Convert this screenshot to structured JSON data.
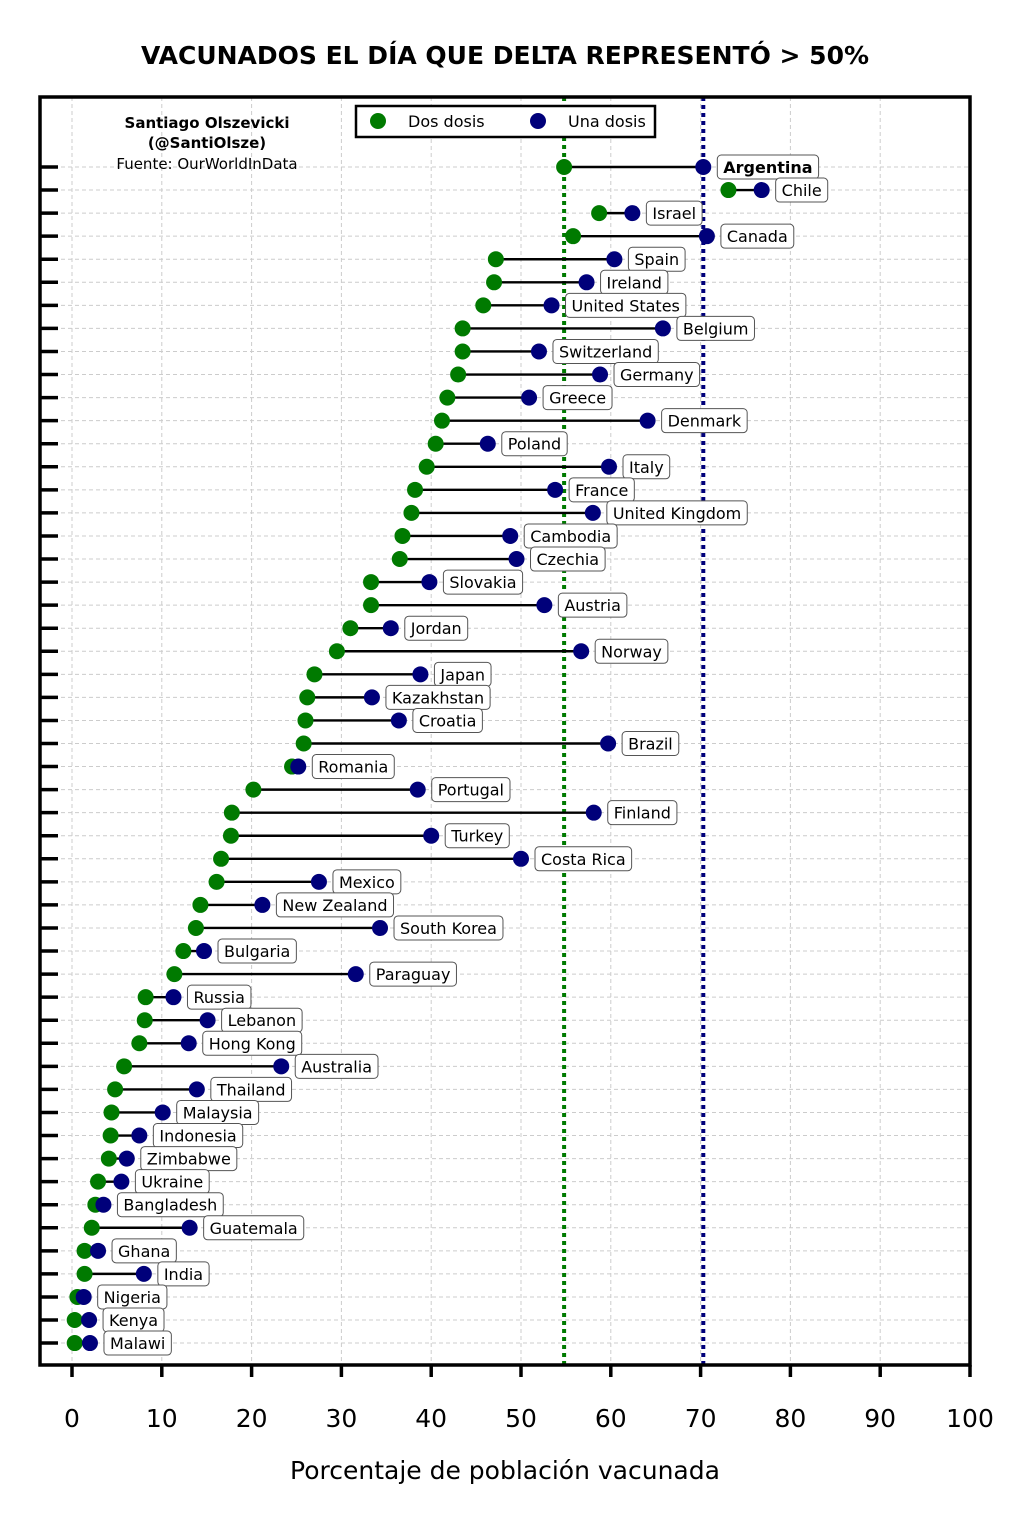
{
  "chart_data": {
    "type": "scatter",
    "title": "VACUNADOS EL DÍA QUE DELTA REPRESENTÓ > 50%",
    "xlabel": "Porcentaje de población vacunada",
    "ylabel": "",
    "xlim": [
      0,
      100
    ],
    "xticks": [
      0,
      10,
      20,
      30,
      40,
      50,
      60,
      70,
      80,
      90,
      100
    ],
    "grid": true,
    "legend_position": "top-center",
    "credits": [
      "Santiago Olszevicki",
      "(@SantiOlsze)",
      "Fuente: OurWorldInData"
    ],
    "series": [
      {
        "name": "Dos dosis",
        "color": "#007a00"
      },
      {
        "name": "Una dosis",
        "color": "#00007a"
      }
    ],
    "reference_lines": [
      {
        "value": 54.8,
        "color": "#007a00",
        "style": "dotted"
      },
      {
        "value": 70.3,
        "color": "#00007a",
        "style": "dotted"
      }
    ],
    "highlight": "Argentina",
    "countries": [
      {
        "name": "Argentina",
        "dos": 54.8,
        "una": 70.3
      },
      {
        "name": "Chile",
        "dos": 73.1,
        "una": 76.8
      },
      {
        "name": "Israel",
        "dos": 58.7,
        "una": 62.4
      },
      {
        "name": "Canada",
        "dos": 55.8,
        "una": 70.7
      },
      {
        "name": "Spain",
        "dos": 47.2,
        "una": 60.4
      },
      {
        "name": "Ireland",
        "dos": 47.0,
        "una": 57.3
      },
      {
        "name": "United States",
        "dos": 45.8,
        "una": 53.4
      },
      {
        "name": "Belgium",
        "dos": 43.5,
        "una": 65.8
      },
      {
        "name": "Switzerland",
        "dos": 43.5,
        "una": 52.0
      },
      {
        "name": "Germany",
        "dos": 43.0,
        "una": 58.8
      },
      {
        "name": "Greece",
        "dos": 41.8,
        "una": 50.9
      },
      {
        "name": "Denmark",
        "dos": 41.2,
        "una": 64.1
      },
      {
        "name": "Poland",
        "dos": 40.5,
        "una": 46.3
      },
      {
        "name": "Italy",
        "dos": 39.5,
        "una": 59.8
      },
      {
        "name": "France",
        "dos": 38.2,
        "una": 53.8
      },
      {
        "name": "United Kingdom",
        "dos": 37.8,
        "una": 58.0
      },
      {
        "name": "Cambodia",
        "dos": 36.8,
        "una": 48.8
      },
      {
        "name": "Czechia",
        "dos": 36.5,
        "una": 49.5
      },
      {
        "name": "Slovakia",
        "dos": 33.3,
        "una": 39.8
      },
      {
        "name": "Austria",
        "dos": 33.3,
        "una": 52.6
      },
      {
        "name": "Jordan",
        "dos": 31.0,
        "una": 35.5
      },
      {
        "name": "Norway",
        "dos": 29.5,
        "una": 56.7
      },
      {
        "name": "Japan",
        "dos": 27.0,
        "una": 38.8
      },
      {
        "name": "Kazakhstan",
        "dos": 26.2,
        "una": 33.4
      },
      {
        "name": "Croatia",
        "dos": 26.0,
        "una": 36.4
      },
      {
        "name": "Brazil",
        "dos": 25.8,
        "una": 59.7
      },
      {
        "name": "Romania",
        "dos": 24.5,
        "una": 25.2
      },
      {
        "name": "Portugal",
        "dos": 20.2,
        "una": 38.5
      },
      {
        "name": "Finland",
        "dos": 17.8,
        "una": 58.1
      },
      {
        "name": "Turkey",
        "dos": 17.7,
        "una": 40.0
      },
      {
        "name": "Costa Rica",
        "dos": 16.6,
        "una": 50.0
      },
      {
        "name": "Mexico",
        "dos": 16.1,
        "una": 27.5
      },
      {
        "name": "New Zealand",
        "dos": 14.3,
        "una": 21.2
      },
      {
        "name": "South Korea",
        "dos": 13.8,
        "una": 34.3
      },
      {
        "name": "Bulgaria",
        "dos": 12.4,
        "una": 14.7
      },
      {
        "name": "Paraguay",
        "dos": 11.4,
        "una": 31.6
      },
      {
        "name": "Russia",
        "dos": 8.2,
        "una": 11.3
      },
      {
        "name": "Lebanon",
        "dos": 8.1,
        "una": 15.1
      },
      {
        "name": "Hong Kong",
        "dos": 7.5,
        "una": 13.0
      },
      {
        "name": "Australia",
        "dos": 5.8,
        "una": 23.3
      },
      {
        "name": "Thailand",
        "dos": 4.8,
        "una": 13.9
      },
      {
        "name": "Malaysia",
        "dos": 4.4,
        "una": 10.1
      },
      {
        "name": "Indonesia",
        "dos": 4.3,
        "una": 7.5
      },
      {
        "name": "Zimbabwe",
        "dos": 4.1,
        "una": 6.1
      },
      {
        "name": "Ukraine",
        "dos": 2.9,
        "una": 5.5
      },
      {
        "name": "Bangladesh",
        "dos": 2.6,
        "una": 3.5
      },
      {
        "name": "Guatemala",
        "dos": 2.2,
        "una": 13.1
      },
      {
        "name": "Ghana",
        "dos": 1.4,
        "una": 2.9
      },
      {
        "name": "India",
        "dos": 1.4,
        "una": 8.0
      },
      {
        "name": "Nigeria",
        "dos": 0.6,
        "una": 1.3
      },
      {
        "name": "Kenya",
        "dos": 0.3,
        "una": 1.9
      },
      {
        "name": "Malawi",
        "dos": 0.3,
        "una": 2.0
      }
    ]
  }
}
